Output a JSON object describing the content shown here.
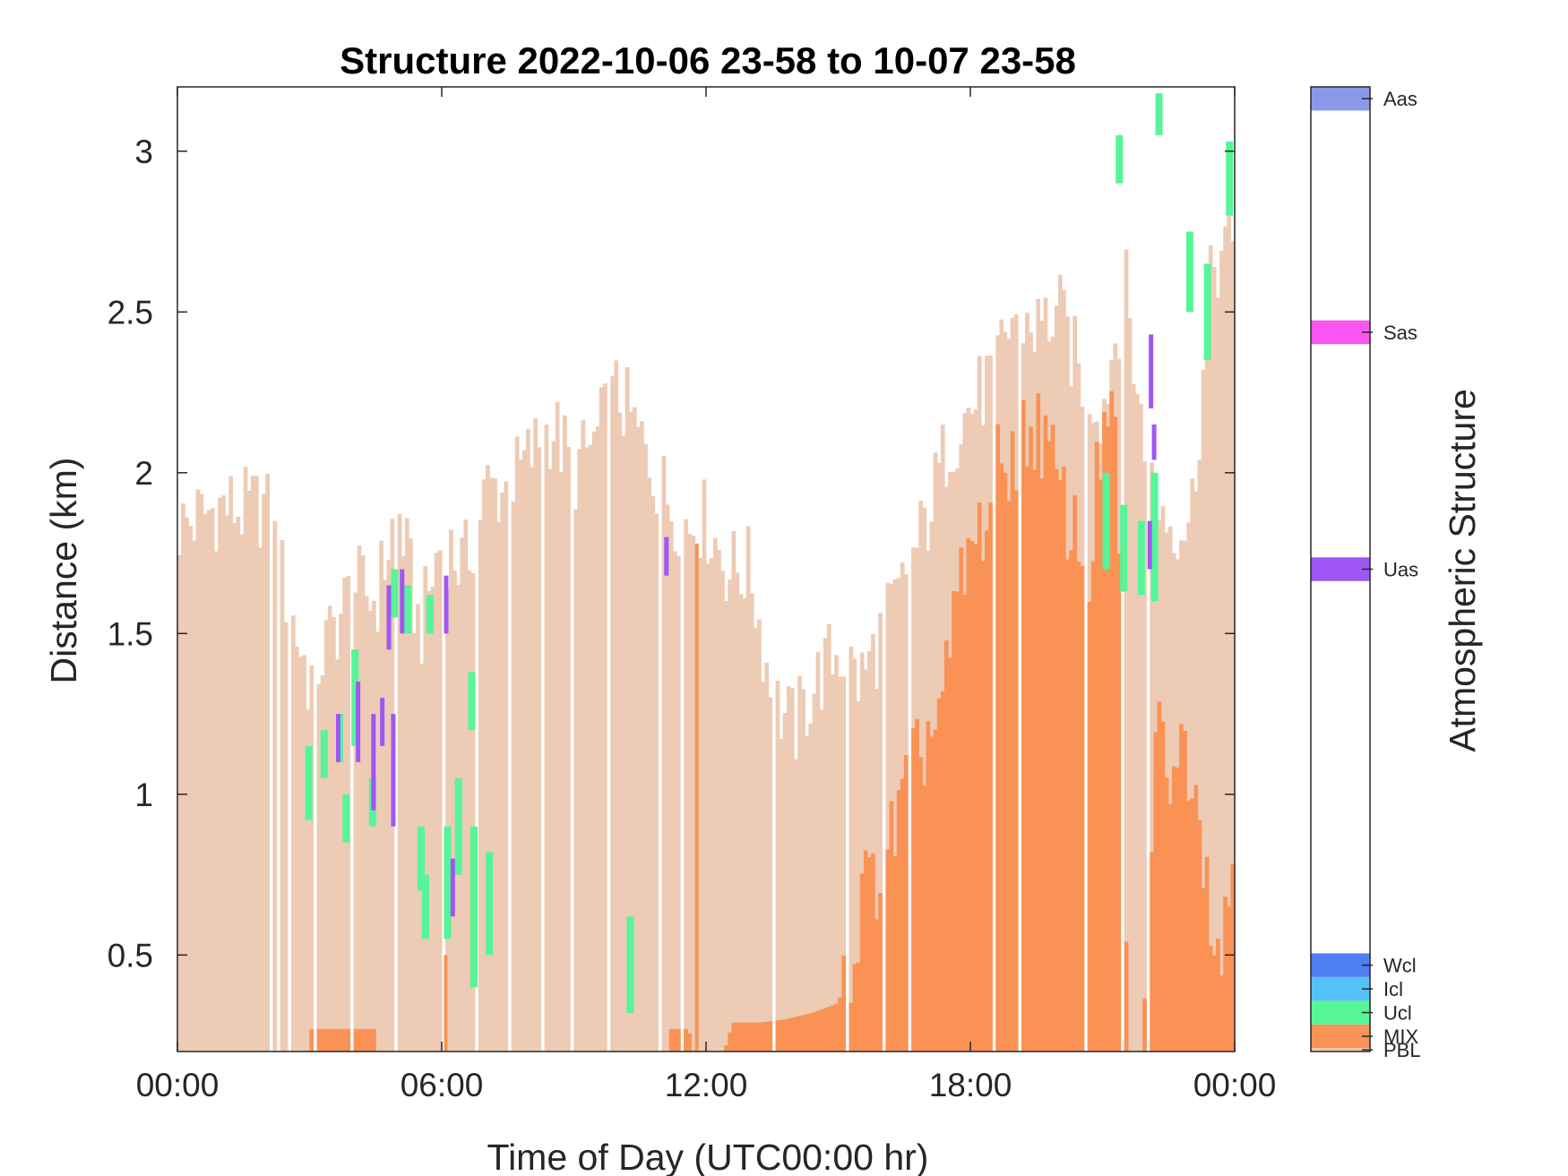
{
  "chart_data": {
    "type": "bar",
    "title": "Structure 2022-10-06 23-58 to 10-07 23-58",
    "xlabel": "Time of Day (UTC00:00 hr)",
    "ylabel": "Distance (km)",
    "colorbar_label": "Atmospheric Structure",
    "xlim_hours": [
      0,
      24
    ],
    "ylim_km": [
      0.2,
      3.2
    ],
    "x_ticks": [
      {
        "hour": 0,
        "label": "00:00"
      },
      {
        "hour": 6,
        "label": "06:00"
      },
      {
        "hour": 12,
        "label": "12:00"
      },
      {
        "hour": 18,
        "label": "18:00"
      },
      {
        "hour": 24,
        "label": "00:00"
      }
    ],
    "y_ticks": [
      {
        "value": 0.5,
        "label": "0.5"
      },
      {
        "value": 1,
        "label": "1"
      },
      {
        "value": 1.5,
        "label": "1.5"
      },
      {
        "value": 2,
        "label": "2"
      },
      {
        "value": 2.5,
        "label": "2.5"
      },
      {
        "value": 3,
        "label": "3"
      }
    ],
    "structure_classes": [
      {
        "code": "PBL",
        "color": "#EDCBB5",
        "cb_from": 0.0,
        "cb_to": 0.1
      },
      {
        "code": "MIX",
        "color": "#FA9255",
        "cb_from": 0.1,
        "cb_to": 0.8
      },
      {
        "code": "Ucl",
        "color": "#55F598",
        "cb_from": 0.8,
        "cb_to": 1.5
      },
      {
        "code": "Icl",
        "color": "#55C2F6",
        "cb_from": 1.5,
        "cb_to": 2.2
      },
      {
        "code": "Wcl",
        "color": "#4F7EF2",
        "cb_from": 2.2,
        "cb_to": 2.9
      },
      {
        "code": "Uas",
        "color": "#A056F5",
        "cb_from": 13.9,
        "cb_to": 14.6
      },
      {
        "code": "Sas",
        "color": "#FA55F0",
        "cb_from": 20.9,
        "cb_to": 21.6
      },
      {
        "code": "Aas",
        "color": "#8B98EA",
        "cb_from": 27.8,
        "cb_to": 28.5
      }
    ],
    "colorbar_range": [
      0,
      28.5
    ],
    "series": [
      {
        "code": "PBL",
        "bin_hours": 0.0833,
        "profile_hours": [
          0,
          0.5,
          1,
          1.5,
          2,
          2.5,
          3,
          3.5,
          4,
          4.5,
          5,
          5.5,
          6,
          6.5,
          7,
          7.5,
          8,
          8.5,
          9,
          9.5,
          10,
          10.5,
          11,
          11.5,
          12,
          12.5,
          13,
          13.5,
          14,
          14.5,
          15,
          15.5,
          16,
          16.5,
          17,
          17.5,
          18,
          18.5,
          19,
          19.5,
          20,
          20.5,
          21,
          21.5,
          22,
          22.5,
          23,
          23.5,
          24
        ],
        "profile_top_km": [
          1.83,
          1.86,
          1.9,
          1.88,
          1.9,
          1.6,
          1.35,
          1.5,
          1.65,
          1.6,
          1.9,
          1.5,
          1.8,
          1.7,
          1.95,
          1.95,
          2.05,
          2.15,
          2.0,
          2.1,
          2.25,
          2.1,
          1.95,
          1.85,
          1.85,
          1.7,
          1.7,
          1.3,
          1.2,
          1.35,
          1.45,
          1.35,
          1.5,
          1.65,
          1.85,
          2.1,
          2.2,
          2.3,
          2.5,
          2.45,
          2.5,
          2.3,
          2.2,
          2.6,
          2.0,
          1.85,
          1.85,
          2.65,
          2.7
        ],
        "missing_intervals_hours": [
          [
            2.08,
            2.18
          ],
          [
            2.25,
            2.33
          ],
          [
            2.5,
            2.58
          ],
          [
            3.1,
            3.2
          ],
          [
            3.92,
            3.98
          ],
          [
            4.9,
            4.98
          ],
          [
            6.0,
            6.08
          ],
          [
            6.75,
            6.85
          ],
          [
            7.5,
            7.58
          ],
          [
            8.25,
            8.33
          ],
          [
            8.9,
            8.98
          ],
          [
            9.75,
            9.83
          ],
          [
            10.9,
            10.98
          ],
          [
            11.4,
            11.5
          ],
          [
            13.5,
            13.6
          ],
          [
            15.2,
            15.28
          ],
          [
            16.0,
            16.08
          ],
          [
            16.58,
            16.66
          ],
          [
            18.5,
            18.58
          ],
          [
            19.1,
            19.18
          ],
          [
            20.58,
            20.66
          ],
          [
            21.42,
            21.5
          ],
          [
            22.0,
            22.08
          ]
        ]
      },
      {
        "code": "MIX",
        "profile_hours": [
          0,
          2.9,
          3.0,
          4.5,
          4.6,
          6.1,
          6.4,
          10.9,
          11.2,
          11.6,
          12.0,
          12.6,
          13.2,
          13.8,
          14.4,
          15.0,
          15.3,
          15.6,
          15.9,
          16.2,
          16.5,
          16.8,
          17.1,
          17.4,
          17.7,
          18.0,
          18.3,
          18.6,
          18.9,
          19.2,
          19.5,
          19.8,
          20.1,
          20.4,
          20.7,
          21.0,
          21.3,
          21.6,
          21.9,
          22.2,
          22.5,
          22.8,
          23.1,
          23.4,
          23.7,
          24
        ],
        "profile_top_km": [
          0.0,
          0.0,
          0.27,
          0.27,
          0.0,
          0.0,
          0.0,
          0.0,
          0.27,
          0.27,
          0.0,
          0.29,
          0.29,
          0.3,
          0.32,
          0.35,
          0.5,
          0.7,
          0.75,
          0.85,
          1.0,
          1.1,
          1.2,
          1.3,
          1.6,
          1.75,
          1.85,
          2.0,
          2.05,
          2.1,
          2.15,
          2.05,
          1.9,
          1.8,
          1.7,
          2.15,
          2.1,
          0.2,
          0.2,
          1.2,
          1.1,
          1.15,
          1.1,
          0.7,
          0.5,
          0.85
        ],
        "isolated_columns": [
          {
            "hour": 6.05,
            "top_km": 0.5
          },
          {
            "hour": 11.75,
            "top_km": 1.78
          }
        ]
      },
      {
        "code": "Ucl",
        "layers": [
          {
            "hour": 2.9,
            "bottom_km": 0.92,
            "top_km": 1.15
          },
          {
            "hour": 3.25,
            "bottom_km": 1.05,
            "top_km": 1.2
          },
          {
            "hour": 3.6,
            "bottom_km": 1.1,
            "top_km": 1.25
          },
          {
            "hour": 3.75,
            "bottom_km": 0.85,
            "top_km": 1.0
          },
          {
            "hour": 3.95,
            "bottom_km": 1.15,
            "top_km": 1.45
          },
          {
            "hour": 4.35,
            "bottom_km": 0.9,
            "top_km": 1.05
          },
          {
            "hour": 4.85,
            "bottom_km": 1.55,
            "top_km": 1.7
          },
          {
            "hour": 5.15,
            "bottom_km": 1.5,
            "top_km": 1.65
          },
          {
            "hour": 5.65,
            "bottom_km": 1.5,
            "top_km": 1.62
          },
          {
            "hour": 5.45,
            "bottom_km": 0.7,
            "top_km": 0.9
          },
          {
            "hour": 5.55,
            "bottom_km": 0.55,
            "top_km": 0.75
          },
          {
            "hour": 6.05,
            "bottom_km": 0.55,
            "top_km": 0.9
          },
          {
            "hour": 6.3,
            "bottom_km": 0.75,
            "top_km": 1.05
          },
          {
            "hour": 6.6,
            "bottom_km": 1.2,
            "top_km": 1.38
          },
          {
            "hour": 6.65,
            "bottom_km": 0.4,
            "top_km": 0.9
          },
          {
            "hour": 7.0,
            "bottom_km": 0.5,
            "top_km": 0.82
          },
          {
            "hour": 10.2,
            "bottom_km": 0.32,
            "top_km": 0.62
          },
          {
            "hour": 21.3,
            "bottom_km": 2.9,
            "top_km": 3.05
          },
          {
            "hour": 21.0,
            "bottom_km": 1.7,
            "top_km": 2.0
          },
          {
            "hour": 21.4,
            "bottom_km": 1.63,
            "top_km": 1.9
          },
          {
            "hour": 21.8,
            "bottom_km": 1.62,
            "top_km": 1.85
          },
          {
            "hour": 22.1,
            "bottom_km": 1.6,
            "top_km": 2.0
          },
          {
            "hour": 22.2,
            "bottom_km": 3.05,
            "top_km": 3.18
          },
          {
            "hour": 22.9,
            "bottom_km": 2.5,
            "top_km": 2.75
          },
          {
            "hour": 23.3,
            "bottom_km": 2.35,
            "top_km": 2.65
          },
          {
            "hour": 23.8,
            "bottom_km": 2.8,
            "top_km": 3.03
          }
        ]
      },
      {
        "code": "Uas",
        "layers": [
          {
            "hour": 3.6,
            "bottom_km": 1.1,
            "top_km": 1.25
          },
          {
            "hour": 4.05,
            "bottom_km": 1.1,
            "top_km": 1.35
          },
          {
            "hour": 4.4,
            "bottom_km": 0.95,
            "top_km": 1.25
          },
          {
            "hour": 4.6,
            "bottom_km": 1.15,
            "top_km": 1.3
          },
          {
            "hour": 4.75,
            "bottom_km": 1.45,
            "top_km": 1.65
          },
          {
            "hour": 4.85,
            "bottom_km": 0.9,
            "top_km": 1.25
          },
          {
            "hour": 5.05,
            "bottom_km": 1.5,
            "top_km": 1.7
          },
          {
            "hour": 6.05,
            "bottom_km": 1.5,
            "top_km": 1.68
          },
          {
            "hour": 6.2,
            "bottom_km": 0.62,
            "top_km": 0.8
          },
          {
            "hour": 11.05,
            "bottom_km": 1.68,
            "top_km": 1.8
          },
          {
            "hour": 22.05,
            "bottom_km": 2.2,
            "top_km": 2.43
          },
          {
            "hour": 22.12,
            "bottom_km": 2.04,
            "top_km": 2.15
          },
          {
            "hour": 22.02,
            "bottom_km": 1.7,
            "top_km": 1.85
          }
        ]
      }
    ]
  }
}
